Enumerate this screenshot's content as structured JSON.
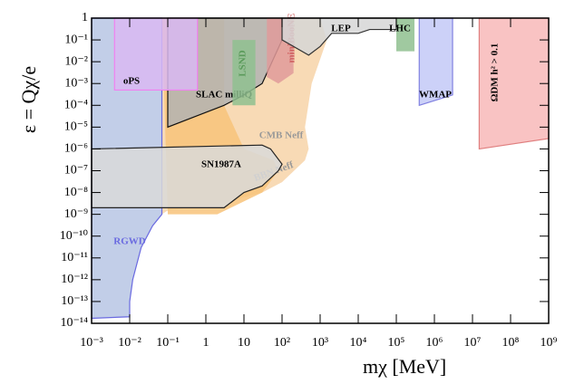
{
  "chart_data": {
    "type": "region",
    "x_label": "mχ [MeV]",
    "y_label": "ε = Qχ/e",
    "xscale": "log",
    "yscale": "log",
    "xlim": [
      0.001,
      1000000000.0
    ],
    "ylim": [
      1e-14,
      1
    ],
    "xticks": [
      {
        "value": 0.001,
        "label": "10⁻³"
      },
      {
        "value": 0.01,
        "label": "10⁻²"
      },
      {
        "value": 0.1,
        "label": "10⁻¹"
      },
      1,
      10,
      {
        "value": 100,
        "label": "10²"
      },
      {
        "value": 1000,
        "label": "10³"
      },
      {
        "value": 10000,
        "label": "10⁴"
      },
      {
        "value": 100000,
        "label": "10⁵"
      },
      {
        "value": 1000000,
        "label": "10⁶"
      },
      {
        "value": 10000000,
        "label": "10⁷"
      },
      {
        "value": 100000000,
        "label": "10⁸"
      },
      {
        "value": 1000000000,
        "label": "10⁹"
      }
    ],
    "yticks": [
      {
        "value": 1e-14,
        "label": "10⁻¹⁴"
      },
      {
        "value": 1e-13,
        "label": "10⁻¹³"
      },
      {
        "value": 1e-12,
        "label": "10⁻¹²"
      },
      {
        "value": 1e-11,
        "label": "10⁻¹¹"
      },
      {
        "value": 1e-10,
        "label": "10⁻¹⁰"
      },
      {
        "value": 1e-09,
        "label": "10⁻⁹"
      },
      {
        "value": 1e-08,
        "label": "10⁻⁸"
      },
      {
        "value": 1e-07,
        "label": "10⁻⁷"
      },
      {
        "value": 1e-06,
        "label": "10⁻⁶"
      },
      {
        "value": 1e-05,
        "label": "10⁻⁵"
      },
      {
        "value": 0.0001,
        "label": "10⁻⁴"
      },
      {
        "value": 0.001,
        "label": "10⁻³"
      },
      {
        "value": 0.01,
        "label": "10⁻²"
      },
      {
        "value": 0.1,
        "label": "10⁻¹"
      },
      1
    ],
    "series": [
      {
        "name": "CMB Neff",
        "color": "#f7d3a8",
        "x": [
          0.07,
          1000,
          1500,
          600,
          400,
          500,
          400,
          100,
          30,
          2,
          0.1,
          0.07
        ],
        "y": [
          1,
          1,
          0.1,
          0.001,
          1e-05,
          1e-06,
          3e-07,
          3e-08,
          1e-08,
          3e-09,
          1.5e-09,
          1e-09
        ]
      },
      {
        "name": "RGWD",
        "color": "#b7c6e4",
        "edgecolor": "#6a6ae0",
        "x": [
          0.001,
          0.07,
          0.07,
          0.04,
          0.02,
          0.012,
          0.01,
          0.01,
          0.001
        ],
        "y": [
          1,
          1,
          1e-09,
          3e-10,
          3e-11,
          1e-12,
          1e-13,
          2e-14,
          1.7e-14
        ]
      },
      {
        "name": "BBN Neff",
        "color": "#f8c37a",
        "x": [
          0.07,
          3,
          3,
          10,
          60,
          80,
          30,
          2,
          0.1
        ],
        "y": [
          1,
          1,
          0.0001,
          1e-06,
          3e-07,
          1e-07,
          1e-08,
          1e-09,
          1e-09
        ]
      },
      {
        "name": "SN1987A",
        "color": "#d9d9d9",
        "edgecolor": "#222222",
        "x": [
          0.001,
          30,
          50,
          100,
          80,
          30,
          10,
          3,
          0.001
        ],
        "y": [
          1e-06,
          1.5e-06,
          1e-06,
          2e-07,
          1e-07,
          2e-08,
          1e-08,
          2e-09,
          2e-09
        ]
      },
      {
        "name": "SLAC milliQ",
        "color": "#b3b3b3",
        "edgecolor": "#111111",
        "x": [
          0.1,
          100,
          100,
          30,
          10,
          3,
          0.1
        ],
        "y": [
          1,
          1,
          0.1,
          0.001,
          0.0003,
          0.0001,
          1e-05
        ]
      },
      {
        "name": "oPS",
        "color": "#d9b9f2",
        "edgecolor": "#f080f0",
        "x": [
          0.004,
          0.6,
          0.6,
          0.004
        ],
        "y": [
          1,
          1,
          0.0005,
          0.0005
        ]
      },
      {
        "name": "LSND",
        "color": "#8fbf8f",
        "x": [
          5,
          20,
          20,
          5
        ],
        "y": [
          0.1,
          0.1,
          0.0001,
          0.0001
        ]
      },
      {
        "name": "miniBooNE",
        "color": "#e09a9a",
        "x": [
          40,
          200,
          200,
          80,
          40
        ],
        "y": [
          1,
          1,
          0.003,
          0.001,
          0.002
        ]
      },
      {
        "name": "LEP",
        "color": "#d6d6d6",
        "edgecolor": "#333333",
        "x": [
          100,
          100000,
          100000,
          20000,
          10000,
          2000,
          1000,
          500,
          100
        ],
        "y": [
          1,
          1,
          0.3,
          0.3,
          0.2,
          0.2,
          0.05,
          0.02,
          0.1
        ]
      },
      {
        "name": "LHC",
        "color": "#8fbf8f",
        "x": [
          100000,
          300000,
          300000,
          100000
        ],
        "y": [
          1,
          1,
          0.03,
          0.03
        ]
      },
      {
        "name": "WMAP",
        "color": "#c3c9f7",
        "edgecolor": "#8080e0",
        "x": [
          400000,
          3000000,
          3000000,
          400000
        ],
        "y": [
          1,
          1,
          0.0003,
          0.0001
        ]
      },
      {
        "name": "ΩDM h² > 0.1",
        "color": "#f8b8b8",
        "edgecolor": "#e08080",
        "x": [
          15000000,
          1000000000,
          1000000000,
          15000000
        ],
        "y": [
          1,
          1,
          3e-06,
          1e-06
        ]
      }
    ]
  }
}
